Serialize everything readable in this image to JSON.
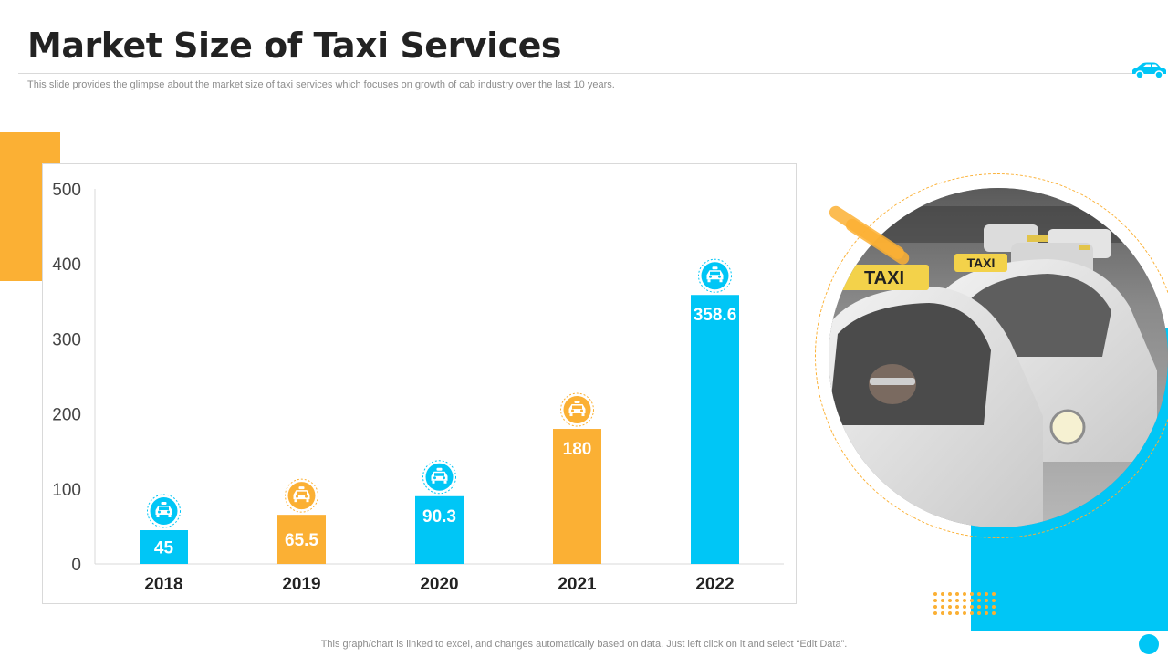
{
  "slide": {
    "title": "Market Size of Taxi Services",
    "subtitle": "This slide provides the glimpse about the market size of taxi services which focuses on growth of cab industry over the last 10 years.",
    "footer": "This graph/chart is linked to excel, and changes automatically based on data. Just left click on it and select “Edit Data”."
  },
  "colors": {
    "blue": "#00c6f6",
    "orange": "#fbb034",
    "text_dark": "#222222",
    "axis": "#444444"
  },
  "chart_data": {
    "type": "bar",
    "title": "",
    "xlabel": "",
    "ylabel": "",
    "categories": [
      "2018",
      "2019",
      "2020",
      "2021",
      "2022"
    ],
    "values": [
      45,
      65.5,
      90.3,
      180,
      358.6
    ],
    "data_labels": [
      "45",
      "65.5",
      "90.3",
      "180",
      "358.6"
    ],
    "bar_colors": [
      "#00c6f6",
      "#fbb034",
      "#00c6f6",
      "#fbb034",
      "#00c6f6"
    ],
    "ylim": [
      0,
      500
    ],
    "yticks": [
      0,
      100,
      200,
      300,
      400,
      500
    ],
    "grid": false,
    "marker_icon": "taxi-icon"
  }
}
